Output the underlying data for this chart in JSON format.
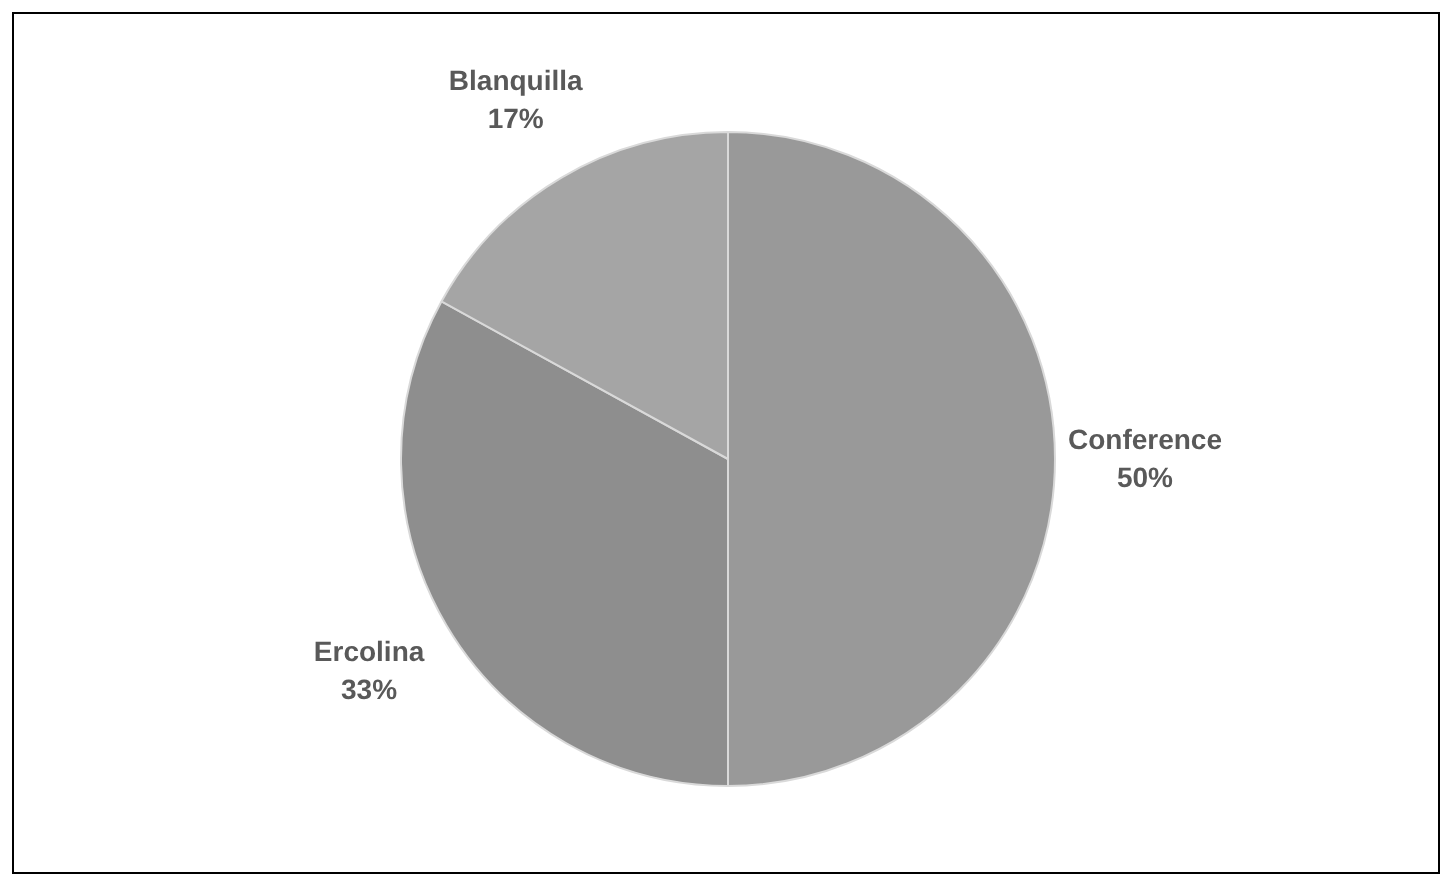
{
  "chart_data": {
    "type": "pie",
    "categories": [
      "Conference",
      "Ercolina",
      "Blanquilla"
    ],
    "values": [
      50,
      33,
      17
    ],
    "colors": [
      "#999999",
      "#8e8e8e",
      "#a5a5a5"
    ],
    "value_labels": [
      "50%",
      "33%",
      "17%"
    ],
    "legend": false
  }
}
